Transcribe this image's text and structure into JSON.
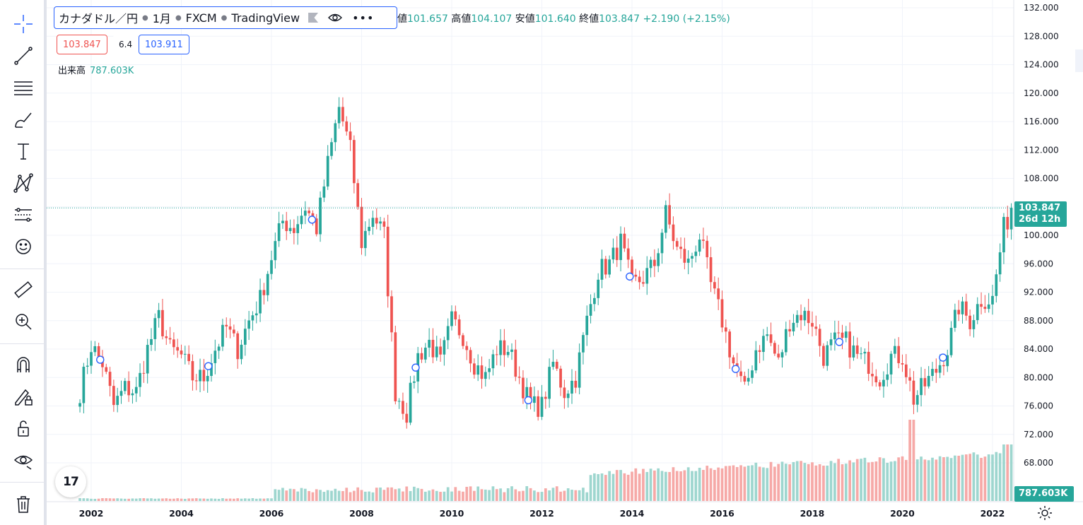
{
  "legend": {
    "symbol": "カナダドル／円",
    "interval": "1月",
    "broker": "FXCM",
    "source": "TradingView",
    "ohlc_values": "値101.657 高値104.107 安値101.640 終値103.847 +2.190 (+2.15%)",
    "open_suffix": "値",
    "open": "101.657",
    "high_label": "高値",
    "high": "104.107",
    "low_label": "安値",
    "low": "101.640",
    "close_label": "終値",
    "close": "103.847",
    "change": "+2.190 (+2.15%)",
    "bid": "103.847",
    "spread": "6.4",
    "ask": "103.911",
    "volume_label": "出来高",
    "volume_value": "787.603K"
  },
  "price_axis": {
    "current_price": "103.847",
    "countdown": "26d 12h",
    "current_volume": "787.603K"
  },
  "toolbar": {
    "icons": [
      "crosshair-icon",
      "trendline-icon",
      "fib-lines-icon",
      "brush-icon",
      "text-icon",
      "pattern-icon",
      "forecast-icon",
      "emoji-icon",
      "ruler-icon",
      "zoom-in-icon",
      "magnet-icon",
      "lock-draw-icon",
      "lock-icon",
      "eye-icon",
      "trash-icon"
    ]
  },
  "logo_text": "17",
  "colors": {
    "up": "#26a69a",
    "down": "#ef5350",
    "up_vol": "#9ed6cf",
    "down_vol": "#f6a9a7",
    "accent": "#2962ff"
  },
  "chart_data": {
    "type": "candlestick",
    "title": "",
    "xlabel": "",
    "ylabel": "",
    "ylim": [
      66.0,
      133.0
    ],
    "y_ticks": [
      68,
      72,
      76,
      80,
      84,
      88,
      92,
      96,
      100,
      104,
      108,
      112,
      116,
      120,
      124,
      128,
      132
    ],
    "y_tick_labels": [
      "68.000",
      "72.000",
      "76.000",
      "80.000",
      "84.000",
      "88.000",
      "92.000",
      "96.000",
      "100.000",
      "104.000",
      "108.000",
      "112.000",
      "116.000",
      "120.000",
      "124.000",
      "128.000",
      "132.000"
    ],
    "x_tick_labels": [
      "2002",
      "2004",
      "2006",
      "2008",
      "2010",
      "2012",
      "2014",
      "2016",
      "2018",
      "2020",
      "2022"
    ],
    "x_tick_years": [
      2002,
      2004,
      2006,
      2008,
      2010,
      2012,
      2014,
      2016,
      2018,
      2020,
      2022
    ],
    "x_range_years": [
      2001.75,
      2022.45
    ],
    "grid": true,
    "series": [
      {
        "name": "",
        "closes_by_quarter": [
          [
            2001.75,
            78
          ],
          [
            2002.0,
            84.5
          ],
          [
            2002.25,
            82
          ],
          [
            2002.5,
            76
          ],
          [
            2002.75,
            78.5
          ],
          [
            2003.0,
            78
          ],
          [
            2003.25,
            84
          ],
          [
            2003.5,
            88.5
          ],
          [
            2003.75,
            84
          ],
          [
            2004.0,
            83
          ],
          [
            2004.25,
            80
          ],
          [
            2004.5,
            80
          ],
          [
            2004.75,
            84
          ],
          [
            2005.0,
            87
          ],
          [
            2005.25,
            84
          ],
          [
            2005.5,
            88
          ],
          [
            2005.75,
            91
          ],
          [
            2006.0,
            97
          ],
          [
            2006.25,
            102
          ],
          [
            2006.5,
            101
          ],
          [
            2006.75,
            104
          ],
          [
            2007.0,
            101
          ],
          [
            2007.25,
            110
          ],
          [
            2007.5,
            118
          ],
          [
            2007.75,
            112
          ],
          [
            2008.0,
            99
          ],
          [
            2008.25,
            103
          ],
          [
            2008.5,
            100
          ],
          [
            2008.75,
            78
          ],
          [
            2009.0,
            75
          ],
          [
            2009.25,
            83
          ],
          [
            2009.5,
            85
          ],
          [
            2009.75,
            82
          ],
          [
            2010.0,
            88
          ],
          [
            2010.25,
            86
          ],
          [
            2010.5,
            82
          ],
          [
            2010.75,
            80
          ],
          [
            2011.0,
            84
          ],
          [
            2011.25,
            84
          ],
          [
            2011.5,
            80
          ],
          [
            2011.75,
            76
          ],
          [
            2012.0,
            76
          ],
          [
            2012.25,
            82
          ],
          [
            2012.5,
            78
          ],
          [
            2012.75,
            80
          ],
          [
            2013.0,
            88
          ],
          [
            2013.25,
            95
          ],
          [
            2013.5,
            96
          ],
          [
            2013.75,
            99
          ],
          [
            2014.0,
            93
          ],
          [
            2014.25,
            94
          ],
          [
            2014.5,
            96
          ],
          [
            2014.75,
            103
          ],
          [
            2015.0,
            98
          ],
          [
            2015.25,
            96
          ],
          [
            2015.5,
            100
          ],
          [
            2015.75,
            93
          ],
          [
            2016.0,
            88
          ],
          [
            2016.25,
            82
          ],
          [
            2016.5,
            78
          ],
          [
            2016.75,
            84
          ],
          [
            2017.0,
            86
          ],
          [
            2017.25,
            82
          ],
          [
            2017.5,
            88
          ],
          [
            2017.75,
            89
          ],
          [
            2018.0,
            88
          ],
          [
            2018.25,
            83
          ],
          [
            2018.5,
            85
          ],
          [
            2018.75,
            85
          ],
          [
            2019.0,
            83
          ],
          [
            2019.25,
            82
          ],
          [
            2019.5,
            80
          ],
          [
            2019.75,
            83
          ],
          [
            2020.0,
            83
          ],
          [
            2020.25,
            77
          ],
          [
            2020.5,
            79
          ],
          [
            2020.75,
            81
          ],
          [
            2021.0,
            84
          ],
          [
            2021.25,
            90
          ],
          [
            2021.5,
            88
          ],
          [
            2021.75,
            91
          ],
          [
            2022.0,
            91
          ],
          [
            2022.25,
            101
          ],
          [
            2022.45,
            103.847
          ]
        ]
      }
    ],
    "current_price": 103.847,
    "dividend_marker_years": [
      2002.2,
      2004.6,
      2006.9,
      2009.2,
      2011.7,
      2013.95,
      2016.3,
      2018.6,
      2020.9
    ]
  }
}
